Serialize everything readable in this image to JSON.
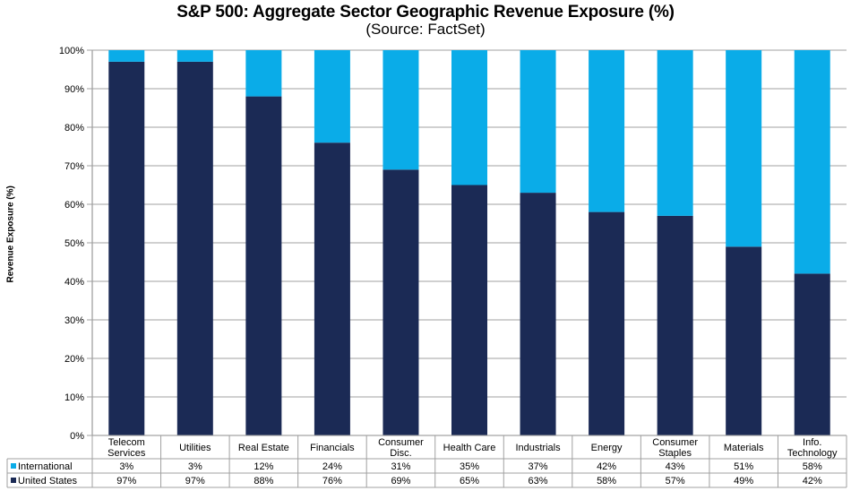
{
  "chart_data": {
    "type": "bar",
    "stacked": true,
    "title": "S&P 500: Aggregate Sector Geographic Revenue Exposure (%)",
    "subtitle": "(Source: FactSet)",
    "xlabel": "",
    "ylabel": "Revenue Exposure (%)",
    "ylim": [
      0,
      100
    ],
    "yticks": [
      "0%",
      "10%",
      "20%",
      "30%",
      "40%",
      "50%",
      "60%",
      "70%",
      "80%",
      "90%",
      "100%"
    ],
    "grid": true,
    "legend": "data-table-left",
    "categories": [
      [
        "Telecom",
        "Services"
      ],
      [
        "Utilities"
      ],
      [
        "Real Estate"
      ],
      [
        "Financials"
      ],
      [
        "Consumer",
        "Disc."
      ],
      [
        "Health Care"
      ],
      [
        "Industrials"
      ],
      [
        "Energy"
      ],
      [
        "Consumer",
        "Staples"
      ],
      [
        "Materials"
      ],
      [
        "Info.",
        "Technology"
      ]
    ],
    "series": [
      {
        "name": "United States",
        "color": "#1b2a55",
        "values": [
          97,
          97,
          88,
          76,
          69,
          65,
          63,
          58,
          57,
          49,
          42
        ],
        "labels": [
          "97%",
          "97%",
          "88%",
          "76%",
          "69%",
          "65%",
          "63%",
          "58%",
          "57%",
          "49%",
          "42%"
        ]
      },
      {
        "name": "International",
        "color": "#0aace8",
        "values": [
          3,
          3,
          12,
          24,
          31,
          35,
          37,
          42,
          43,
          51,
          58
        ],
        "labels": [
          "3%",
          "3%",
          "12%",
          "24%",
          "31%",
          "35%",
          "37%",
          "42%",
          "43%",
          "51%",
          "58%"
        ]
      }
    ],
    "table_row_order": [
      "International",
      "United States"
    ]
  }
}
